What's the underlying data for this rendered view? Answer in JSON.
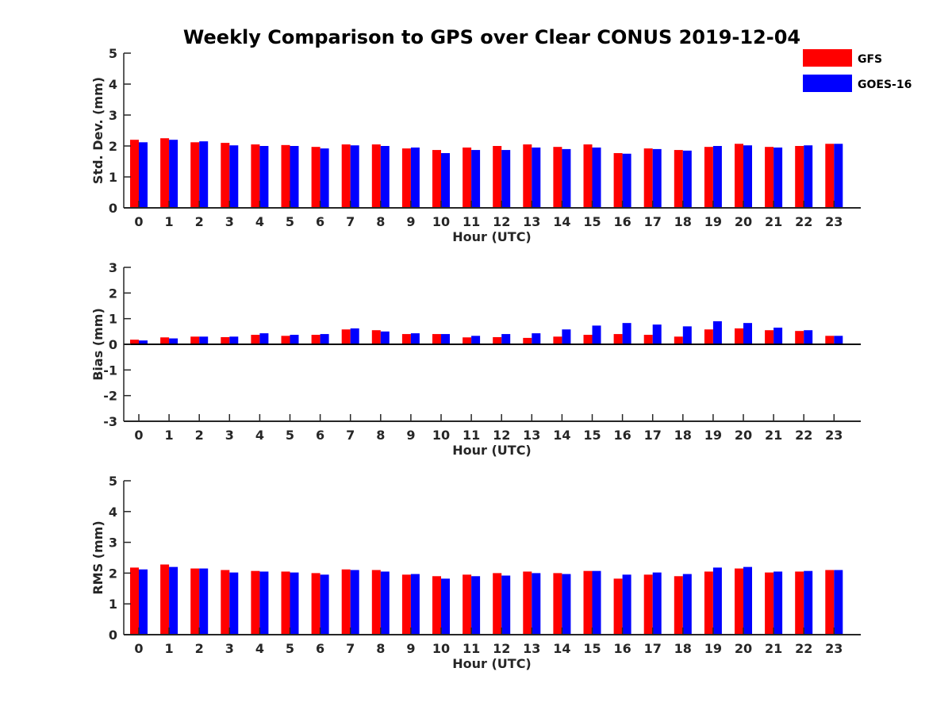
{
  "colors": {
    "gfs": "#ff0000",
    "goes": "#0000ff",
    "axis": "#262626"
  },
  "chart_data": [
    {
      "type": "bar",
      "title": "Weekly Comparison to GPS over Clear CONUS 2019-12-04",
      "xlabel": "Hour (UTC)",
      "ylabel": "Std. Dev. (mm)",
      "ylim": [
        0,
        5
      ],
      "yticks": [
        0,
        1,
        2,
        3,
        4,
        5
      ],
      "categories": [
        "0",
        "1",
        "2",
        "3",
        "4",
        "5",
        "6",
        "7",
        "8",
        "9",
        "10",
        "11",
        "12",
        "13",
        "14",
        "15",
        "16",
        "17",
        "18",
        "19",
        "20",
        "21",
        "22",
        "23"
      ],
      "legend": {
        "position": "top-right"
      },
      "series": [
        {
          "name": "GFS",
          "color": "#ff0000",
          "values": [
            2.2,
            2.25,
            2.12,
            2.1,
            2.05,
            2.03,
            1.97,
            2.05,
            2.05,
            1.92,
            1.87,
            1.95,
            2.0,
            2.05,
            1.97,
            2.05,
            1.77,
            1.92,
            1.87,
            1.97,
            2.07,
            1.97,
            2.0,
            2.07
          ]
        },
        {
          "name": "GOES-16",
          "color": "#0000ff",
          "values": [
            2.12,
            2.2,
            2.15,
            2.02,
            2.0,
            2.0,
            1.92,
            2.02,
            2.0,
            1.95,
            1.77,
            1.87,
            1.87,
            1.95,
            1.9,
            1.95,
            1.75,
            1.9,
            1.85,
            2.0,
            2.02,
            1.95,
            2.02,
            2.07
          ]
        }
      ]
    },
    {
      "type": "bar",
      "xlabel": "Hour (UTC)",
      "ylabel": "Bias (mm)",
      "ylim": [
        -3,
        3
      ],
      "yticks": [
        -3,
        -2,
        -1,
        0,
        1,
        2,
        3
      ],
      "categories": [
        "0",
        "1",
        "2",
        "3",
        "4",
        "5",
        "6",
        "7",
        "8",
        "9",
        "10",
        "11",
        "12",
        "13",
        "14",
        "15",
        "16",
        "17",
        "18",
        "19",
        "20",
        "21",
        "22",
        "23"
      ],
      "series": [
        {
          "name": "GFS",
          "color": "#ff0000",
          "values": [
            0.18,
            0.27,
            0.3,
            0.28,
            0.37,
            0.33,
            0.37,
            0.58,
            0.55,
            0.4,
            0.4,
            0.27,
            0.28,
            0.25,
            0.3,
            0.37,
            0.4,
            0.37,
            0.3,
            0.58,
            0.62,
            0.55,
            0.52,
            0.33
          ]
        },
        {
          "name": "GOES-16",
          "color": "#0000ff",
          "values": [
            0.15,
            0.23,
            0.3,
            0.3,
            0.43,
            0.37,
            0.4,
            0.62,
            0.5,
            0.43,
            0.4,
            0.33,
            0.4,
            0.43,
            0.58,
            0.73,
            0.83,
            0.77,
            0.7,
            0.9,
            0.83,
            0.65,
            0.55,
            0.33
          ]
        }
      ]
    },
    {
      "type": "bar",
      "xlabel": "Hour (UTC)",
      "ylabel": "RMS (mm)",
      "ylim": [
        0,
        5
      ],
      "yticks": [
        0,
        1,
        2,
        3,
        4,
        5
      ],
      "categories": [
        "0",
        "1",
        "2",
        "3",
        "4",
        "5",
        "6",
        "7",
        "8",
        "9",
        "10",
        "11",
        "12",
        "13",
        "14",
        "15",
        "16",
        "17",
        "18",
        "19",
        "20",
        "21",
        "22",
        "23"
      ],
      "series": [
        {
          "name": "GFS",
          "color": "#ff0000",
          "values": [
            2.18,
            2.28,
            2.15,
            2.1,
            2.07,
            2.05,
            2.0,
            2.12,
            2.1,
            1.95,
            1.9,
            1.95,
            2.0,
            2.05,
            2.0,
            2.07,
            1.82,
            1.95,
            1.9,
            2.05,
            2.15,
            2.02,
            2.05,
            2.1
          ]
        },
        {
          "name": "GOES-16",
          "color": "#0000ff",
          "values": [
            2.12,
            2.2,
            2.15,
            2.02,
            2.05,
            2.02,
            1.95,
            2.1,
            2.05,
            1.97,
            1.82,
            1.9,
            1.92,
            2.0,
            1.97,
            2.07,
            1.95,
            2.02,
            1.97,
            2.18,
            2.2,
            2.05,
            2.07,
            2.1
          ]
        }
      ]
    }
  ]
}
